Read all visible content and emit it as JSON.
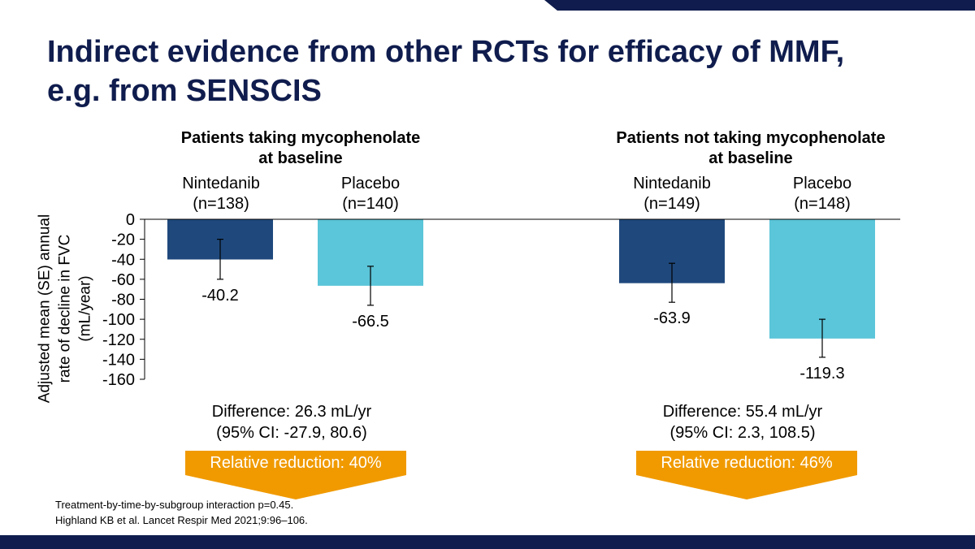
{
  "title": {
    "line1": "Indirect evidence from other RCTs for efficacy of MMF,",
    "line2": "e.g. from SENSCIS"
  },
  "colors": {
    "title": "#0f1c4d",
    "nintedanib": "#1f497d",
    "placebo": "#5bc5d9",
    "arrow": "#f09a00",
    "bar_top": "#0f1c4d"
  },
  "groups": [
    {
      "title_line1": "Patients taking mycophenolate",
      "title_line2": "at baseline",
      "bars": [
        {
          "name": "Nintedanib",
          "n": "(n=138)",
          "label": "-40.2"
        },
        {
          "name": "Placebo",
          "n": "(n=140)",
          "label": "-66.5"
        }
      ],
      "difference": "Difference: 26.3 mL/yr",
      "ci": "(95% CI: -27.9, 80.6)",
      "relative_reduction": "Relative reduction: 40%"
    },
    {
      "title_line1": "Patients not taking mycophenolate",
      "title_line2": "at baseline",
      "bars": [
        {
          "name": "Nintedanib",
          "n": "(n=149)",
          "label": "-63.9"
        },
        {
          "name": "Placebo",
          "n": "(n=148)",
          "label": "-119.3"
        }
      ],
      "difference": "Difference: 55.4 mL/yr",
      "ci": "(95% CI: 2.3, 108.5)",
      "relative_reduction": "Relative reduction: 46%"
    }
  ],
  "footnote": {
    "line1": "Treatment-by-time-by-subgroup interaction p=0.45.",
    "line2": "Highland KB et al. Lancet Respir Med 2021;9:96–106."
  },
  "chart_data": {
    "type": "bar",
    "title": "Indirect evidence from other RCTs for efficacy of MMF, e.g. from SENSCIS",
    "ylabel_lines": [
      "Adjusted mean (SE) annual",
      "rate of decline in FVC",
      "(mL/year)"
    ],
    "xlabel": "",
    "ylim": [
      -160,
      0
    ],
    "yticks": [
      0,
      -20,
      -40,
      -60,
      -80,
      -100,
      -120,
      -140,
      -160
    ],
    "categories": [
      "Patients taking mycophenolate at baseline",
      "Patients not taking mycophenolate at baseline"
    ],
    "series": [
      {
        "name": "Nintedanib",
        "values": [
          -40.2,
          -63.9
        ],
        "error_low": [
          -60,
          -83
        ],
        "error_high": [
          -20,
          -44
        ]
      },
      {
        "name": "Placebo",
        "values": [
          -66.5,
          -119.3
        ],
        "error_low": [
          -86,
          -138
        ],
        "error_high": [
          -47,
          -100
        ]
      }
    ]
  }
}
